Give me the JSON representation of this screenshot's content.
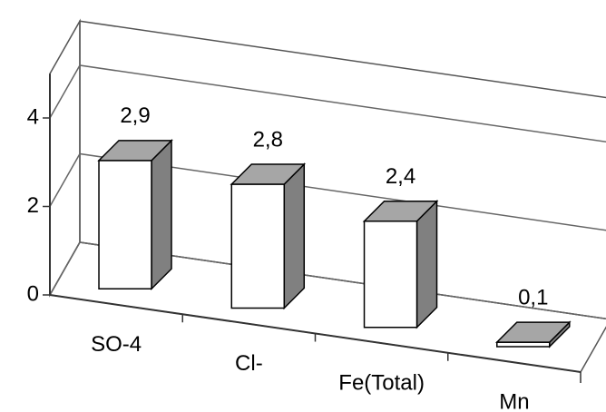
{
  "chart_data": {
    "type": "bar3d",
    "categories": [
      "SO-4",
      "Cl-",
      "Fe(Total)",
      "Mn"
    ],
    "values": [
      2.9,
      2.8,
      2.4,
      0.1
    ],
    "value_labels": [
      "2,9",
      "2,8",
      "2,4",
      "0,1"
    ],
    "ylim": [
      0,
      5
    ],
    "yticks": [
      0,
      2,
      4
    ],
    "grid": true,
    "color": "#ffffff",
    "side_color": "#808080",
    "top_color": "#a6a6a6"
  }
}
